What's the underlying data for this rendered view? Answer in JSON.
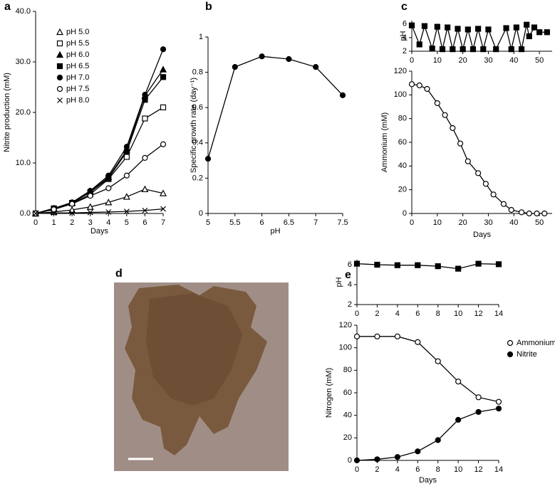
{
  "chart_data": [
    {
      "type": "line",
      "panel": "a",
      "xlabel": "Days",
      "ylabel": "Nitrite production (mM)",
      "x": [
        0,
        1,
        2,
        3,
        4,
        5,
        6,
        7
      ],
      "xlim": [
        0,
        7
      ],
      "xticks": [
        0,
        1,
        2,
        3,
        4,
        5,
        6,
        7
      ],
      "ylim": [
        0,
        40
      ],
      "yticks": [
        {
          "value": 0,
          "label": "0.0"
        },
        {
          "value": 10,
          "label": "10.0"
        },
        {
          "value": 20,
          "label": "20.0"
        },
        {
          "value": 30,
          "label": "30.0"
        },
        {
          "value": 40,
          "label": "40.0"
        }
      ],
      "legend": "upper left",
      "series": [
        {
          "name": "pH 5.0",
          "color": "#000000",
          "marker": "triangle-open",
          "values": [
            0,
            0.3,
            0.7,
            1.3,
            2.2,
            3.3,
            4.8,
            4.0
          ]
        },
        {
          "name": "pH 5.5",
          "color": "#000000",
          "marker": "square-open",
          "values": [
            0,
            1.0,
            2.0,
            3.8,
            6.8,
            11.2,
            18.8,
            21.0
          ]
        },
        {
          "name": "pH 6.0",
          "color": "#000000",
          "marker": "triangle-filled",
          "values": [
            0,
            1.0,
            2.1,
            4.3,
            7.2,
            12.5,
            23.3,
            28.5
          ]
        },
        {
          "name": "pH 6.5",
          "color": "#000000",
          "marker": "square-filled",
          "values": [
            0,
            1.0,
            2.1,
            4.2,
            7.0,
            12.2,
            22.5,
            27.0
          ]
        },
        {
          "name": "pH 7.0",
          "color": "#000000",
          "marker": "circle-filled",
          "values": [
            0,
            1.0,
            2.2,
            4.5,
            7.5,
            13.2,
            23.5,
            32.5
          ]
        },
        {
          "name": "pH 7.5",
          "color": "#000000",
          "marker": "circle-open",
          "values": [
            0,
            0.8,
            1.9,
            3.5,
            5.0,
            7.5,
            11.0,
            13.7
          ]
        },
        {
          "name": "pH 8.0",
          "color": "#000000",
          "marker": "cross",
          "values": [
            0,
            0.1,
            0.1,
            0.2,
            0.3,
            0.4,
            0.6,
            0.9
          ]
        }
      ]
    },
    {
      "type": "line",
      "panel": "b",
      "xlabel": "pH",
      "ylabel": "Specific growth rate (day⁻¹)",
      "x": [
        5,
        5.5,
        6,
        6.5,
        7,
        7.5
      ],
      "xlim": [
        5,
        7.5
      ],
      "xticks": [
        5,
        5.5,
        6,
        6.5,
        7,
        7.5
      ],
      "ylim": [
        0,
        1
      ],
      "yticks": [
        0,
        0.2,
        0.4,
        0.6,
        0.8,
        1
      ],
      "color": "#000000",
      "marker": "circle-filled",
      "values": [
        0.31,
        0.83,
        0.89,
        0.875,
        0.83,
        0.67
      ]
    },
    {
      "type": "line",
      "panel": "c",
      "ylabel": "pH",
      "x": [
        0,
        3,
        5,
        8,
        10,
        12,
        14,
        16,
        18,
        20,
        22,
        24,
        26,
        28,
        30,
        33,
        37,
        39,
        41,
        43,
        45,
        46,
        48,
        50,
        53
      ],
      "xlim": [
        0,
        55
      ],
      "xticks": [
        0,
        10,
        20,
        30,
        40,
        50
      ],
      "ylim": [
        2,
        6.5
      ],
      "yticks": [
        2,
        4,
        6
      ],
      "color": "#000000",
      "marker": "square-filled",
      "values": [
        5.8,
        3.0,
        5.7,
        2.4,
        5.6,
        2.3,
        5.5,
        2.3,
        5.3,
        2.3,
        5.2,
        2.3,
        5.3,
        2.3,
        5.2,
        2.3,
        5.4,
        2.3,
        5.5,
        2.3,
        5.9,
        4.2,
        5.5,
        4.8,
        4.8
      ]
    },
    {
      "type": "line",
      "xlabel": "Days",
      "ylabel": "Ammonium  (mM)",
      "x": [
        0,
        3,
        6,
        10,
        13,
        16,
        19,
        22,
        26,
        29,
        32,
        36,
        39,
        43,
        46,
        49,
        52
      ],
      "xlim": [
        0,
        55
      ],
      "xticks": [
        0,
        10,
        20,
        30,
        40,
        50
      ],
      "ylim": [
        0,
        120
      ],
      "yticks": [
        0,
        20,
        40,
        60,
        80,
        100,
        120
      ],
      "color": "#000000",
      "marker": "circle-open",
      "values": [
        109,
        108,
        105,
        93,
        83,
        72,
        59,
        44,
        34,
        25,
        16,
        8,
        3,
        1,
        0,
        0,
        0
      ]
    },
    {
      "type": "image",
      "panel": "d"
    },
    {
      "type": "line",
      "panel": "e",
      "ylabel": "pH",
      "x": [
        0,
        2,
        4,
        6,
        8,
        10,
        12,
        14
      ],
      "xlim": [
        0,
        14
      ],
      "xticks": [
        0,
        2,
        4,
        6,
        8,
        10,
        12,
        14
      ],
      "ylim": [
        2,
        6.5
      ],
      "yticks": [
        2,
        4,
        6
      ],
      "color": "#000000",
      "marker": "square-filled",
      "values": [
        6.1,
        6.0,
        5.95,
        5.95,
        5.85,
        5.6,
        6.1,
        6.05
      ]
    },
    {
      "type": "line",
      "xlabel": "Days",
      "ylabel": "Nitrogen (mM)",
      "x": [
        0,
        2,
        4,
        6,
        8,
        10,
        12,
        14
      ],
      "xlim": [
        0,
        14
      ],
      "xticks": [
        0,
        2,
        4,
        6,
        8,
        10,
        12,
        14
      ],
      "ylim": [
        0,
        120
      ],
      "yticks": [
        0,
        20,
        40,
        60,
        80,
        100,
        120
      ],
      "legend": "right",
      "series": [
        {
          "name": "Ammonium",
          "color": "#000000",
          "marker": "circle-open",
          "values": [
            110,
            110,
            110,
            105,
            88,
            70,
            56,
            52
          ]
        },
        {
          "name": "Nitrite",
          "color": "#000000",
          "marker": "circle-filled",
          "values": [
            0,
            1,
            3,
            8,
            18,
            36,
            43,
            46
          ]
        }
      ]
    }
  ]
}
